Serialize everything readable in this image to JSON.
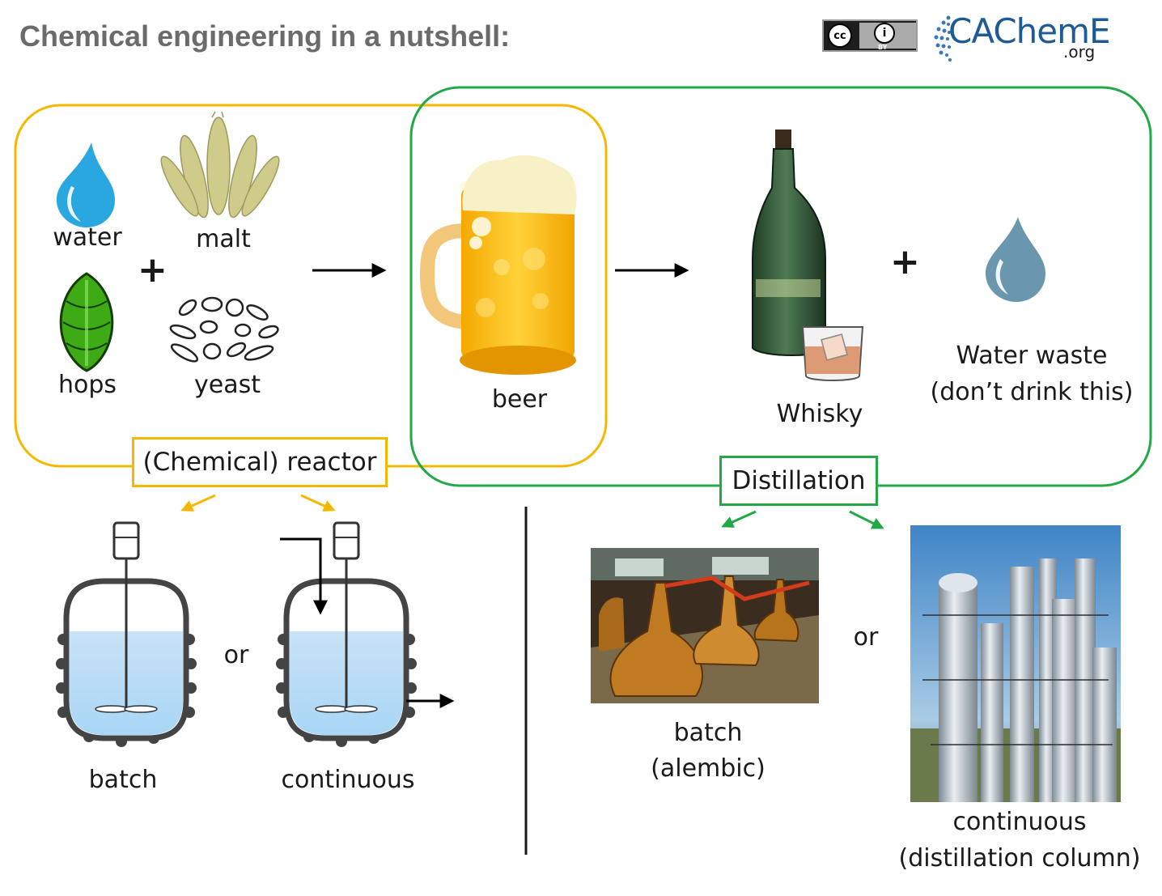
{
  "title": "Chemical engineering in a nutshell:",
  "license_badge": {
    "by": "BY"
  },
  "logo": {
    "name": "CAChemE",
    "suffix": ".org"
  },
  "ingredients": {
    "water": "water",
    "malt": "malt",
    "hops": "hops",
    "yeast": "yeast"
  },
  "symbols": {
    "plus": "+",
    "or": "or"
  },
  "products": {
    "beer": "beer",
    "whisky": "Whisky",
    "water_waste_1": "Water waste",
    "water_waste_2": "(don’t drink this)"
  },
  "reactor": {
    "label": "(Chemical) reactor",
    "batch": "batch",
    "continuous": "continuous"
  },
  "distillation": {
    "label": "Distillation",
    "batch_1": "batch",
    "batch_2": "(alembic)",
    "continuous_1": "continuous",
    "continuous_2": "(distillation column)"
  },
  "colors": {
    "reactor_box": "#F5B800",
    "distillation_box": "#22A846",
    "water": "#2AA7E0",
    "waste_water": "#6B97AE",
    "title": "#6B6B6B"
  }
}
